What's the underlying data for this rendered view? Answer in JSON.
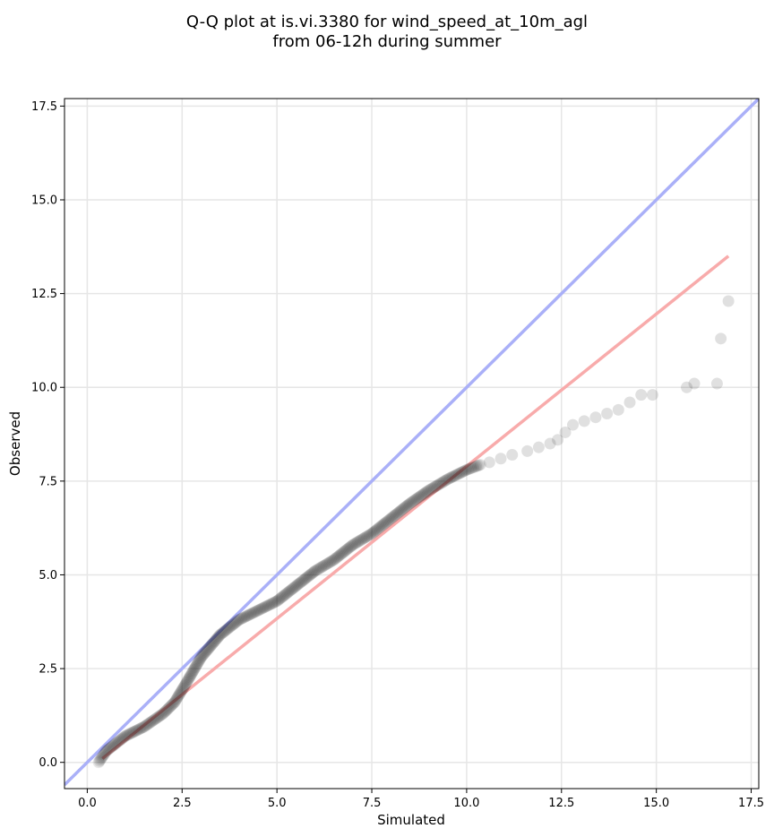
{
  "chart_data": {
    "type": "scatter",
    "title_lines": [
      "Q-Q plot at is.vi.3380 for wind_speed_at_10m_agl",
      "from 06-12h during summer"
    ],
    "xlabel": "Simulated",
    "ylabel": "Observed",
    "xlim": [
      -0.6,
      17.7
    ],
    "ylim": [
      -0.7,
      17.7
    ],
    "xticks": [
      0.0,
      2.5,
      5.0,
      7.5,
      10.0,
      12.5,
      15.0,
      17.5
    ],
    "xtick_labels": [
      "0.0",
      "2.5",
      "5.0",
      "7.5",
      "10.0",
      "12.5",
      "15.0",
      "17.5"
    ],
    "yticks": [
      0.0,
      2.5,
      5.0,
      7.5,
      10.0,
      12.5,
      15.0,
      17.5
    ],
    "ytick_labels": [
      "0.0",
      "2.5",
      "5.0",
      "7.5",
      "10.0",
      "12.5",
      "15.0",
      "17.5"
    ],
    "grid": true,
    "colors": {
      "points": "#000000",
      "identity_line": "#aab0f8",
      "fit_line": "#f8abab"
    },
    "identity_line": {
      "x": [
        -0.6,
        17.7
      ],
      "y": [
        -0.6,
        17.7
      ]
    },
    "fit_line": {
      "x": [
        0.4,
        16.9
      ],
      "y": [
        0.1,
        13.5
      ]
    },
    "curve": [
      [
        0.3,
        0.0
      ],
      [
        0.5,
        0.3
      ],
      [
        1.0,
        0.7
      ],
      [
        1.5,
        0.95
      ],
      [
        2.0,
        1.3
      ],
      [
        2.3,
        1.6
      ],
      [
        2.6,
        2.1
      ],
      [
        3.0,
        2.8
      ],
      [
        3.5,
        3.4
      ],
      [
        4.0,
        3.8
      ],
      [
        4.5,
        4.05
      ],
      [
        5.0,
        4.3
      ],
      [
        5.5,
        4.7
      ],
      [
        6.0,
        5.1
      ],
      [
        6.5,
        5.4
      ],
      [
        7.0,
        5.8
      ],
      [
        7.5,
        6.1
      ],
      [
        8.0,
        6.5
      ],
      [
        8.5,
        6.9
      ],
      [
        9.0,
        7.25
      ],
      [
        9.5,
        7.55
      ],
      [
        10.0,
        7.8
      ],
      [
        10.4,
        7.95
      ]
    ],
    "tail_points": [
      [
        10.6,
        8.0
      ],
      [
        10.9,
        8.1
      ],
      [
        11.2,
        8.2
      ],
      [
        11.6,
        8.3
      ],
      [
        11.9,
        8.4
      ],
      [
        12.2,
        8.5
      ],
      [
        12.4,
        8.6
      ],
      [
        12.6,
        8.8
      ],
      [
        12.8,
        9.0
      ],
      [
        13.1,
        9.1
      ],
      [
        13.4,
        9.2
      ],
      [
        13.7,
        9.3
      ],
      [
        14.0,
        9.4
      ],
      [
        14.3,
        9.6
      ],
      [
        14.6,
        9.8
      ],
      [
        14.9,
        9.8
      ],
      [
        15.8,
        10.0
      ],
      [
        16.0,
        10.1
      ],
      [
        16.6,
        10.1
      ],
      [
        16.7,
        11.3
      ],
      [
        16.9,
        12.3
      ]
    ]
  }
}
